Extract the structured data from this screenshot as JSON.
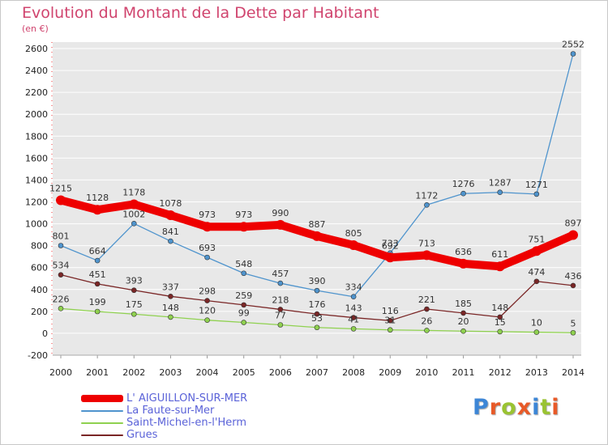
{
  "page": {
    "title": "Evolution du Montant de la Dette par Habitant",
    "subtitle": "(en €)",
    "logo_text": "Proxiti",
    "logo_colors": [
      "#3d86d6",
      "#e85a28",
      "#9ac332",
      "#e85a28",
      "#3d86d6",
      "#9ac332",
      "#e85a28"
    ]
  },
  "chart_data": {
    "type": "line",
    "x": [
      "2000",
      "2001",
      "2002",
      "2003",
      "2004",
      "2005",
      "2006",
      "2007",
      "2008",
      "2009",
      "2010",
      "2011",
      "2012",
      "2013",
      "2014"
    ],
    "ylim": [
      -200,
      2600
    ],
    "yticks": [
      "-200",
      "0",
      "200",
      "400",
      "600",
      "800",
      "1000",
      "1200",
      "1400",
      "1600",
      "1800",
      "2000",
      "2200",
      "2400",
      "2600"
    ],
    "grid": "horizontal",
    "legend_position": "bottom-left",
    "series": [
      {
        "name": "L' AIGUILLON-SUR-MER",
        "color": "#ee0000",
        "values": [
          1215,
          1128,
          1178,
          1078,
          973,
          973,
          990,
          887,
          805,
          692,
          713,
          636,
          611,
          751,
          897
        ],
        "labels": [
          "1215",
          "1128",
          "1178",
          "1078",
          "973",
          "973",
          "990",
          "887",
          "805",
          "692",
          "713",
          "636",
          "611",
          "751",
          "897"
        ]
      },
      {
        "name": "La Faute-sur-Mer",
        "color": "#4f94cd",
        "values": [
          801,
          664,
          1002,
          841,
          693,
          548,
          457,
          390,
          334,
          733,
          1172,
          1276,
          1287,
          1271,
          2552
        ],
        "labels": [
          "801",
          "664",
          "1002",
          "841",
          "693",
          "548",
          "457",
          "390",
          "334",
          "733",
          "1172",
          "1276",
          "1287",
          "1271",
          "2552"
        ]
      },
      {
        "name": "Saint-Michel-en-l'Herm",
        "color": "#8fd14f",
        "values": [
          226,
          199,
          175,
          148,
          120,
          99,
          77,
          53,
          41,
          31,
          26,
          20,
          15,
          10,
          5
        ],
        "labels": [
          "226",
          "199",
          "175",
          "148",
          "120",
          "99",
          "77",
          "53",
          "41",
          "31",
          "26",
          "20",
          "15",
          "10",
          "5"
        ]
      },
      {
        "name": "Grues",
        "color": "#7a2626",
        "values": [
          534,
          451,
          393,
          337,
          298,
          259,
          218,
          176,
          143,
          116,
          221,
          185,
          148,
          474,
          436
        ],
        "labels": [
          "534",
          "451",
          "393",
          "337",
          "298",
          "259",
          "218",
          "176",
          "143",
          "116",
          "221",
          "185",
          "148",
          "474",
          "436"
        ]
      }
    ]
  }
}
